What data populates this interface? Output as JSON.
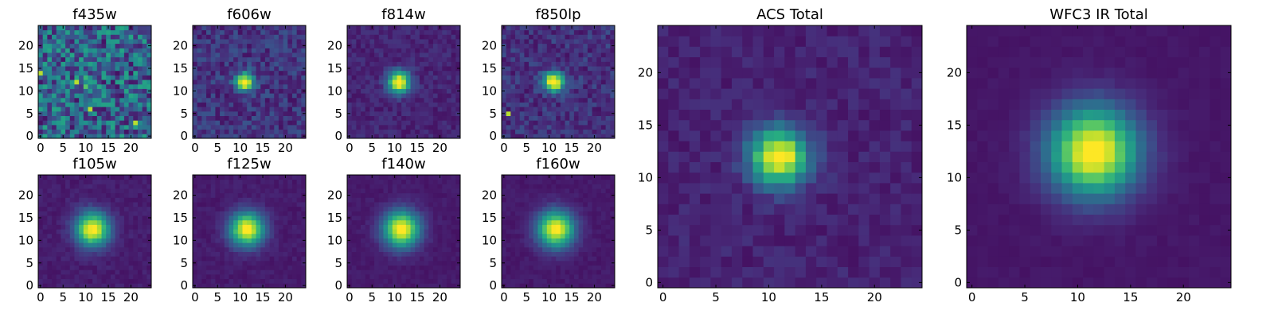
{
  "chart_data": {
    "type": "heatmap",
    "colormap": "viridis",
    "grid": false,
    "panels": [
      {
        "title": "f435w",
        "xlim": [
          0,
          24
        ],
        "ylim": [
          0,
          24
        ],
        "xticks": [
          0,
          5,
          10,
          15,
          20
        ],
        "yticks": [
          0,
          5,
          10,
          15,
          20
        ],
        "center": [
          11,
          12
        ],
        "peak": 0.45,
        "sigma": 1.0,
        "noise": 0.55,
        "peaks": [
          [
            11,
            6
          ],
          [
            8,
            12
          ],
          [
            0,
            14
          ],
          [
            21,
            3
          ]
        ]
      },
      {
        "title": "f606w",
        "xlim": [
          0,
          24
        ],
        "ylim": [
          0,
          24
        ],
        "xticks": [
          0,
          5,
          10,
          15,
          20
        ],
        "yticks": [
          0,
          5,
          10,
          15,
          20
        ],
        "center": [
          11,
          12
        ],
        "peak": 0.95,
        "sigma": 1.4,
        "noise": 0.22,
        "peaks": []
      },
      {
        "title": "f814w",
        "xlim": [
          0,
          24
        ],
        "ylim": [
          0,
          24
        ],
        "xticks": [
          0,
          5,
          10,
          15,
          20
        ],
        "yticks": [
          0,
          5,
          10,
          15,
          20
        ],
        "center": [
          11,
          12
        ],
        "peak": 0.95,
        "sigma": 1.7,
        "noise": 0.12,
        "peaks": []
      },
      {
        "title": "f850lp",
        "xlim": [
          0,
          24
        ],
        "ylim": [
          0,
          24
        ],
        "xticks": [
          0,
          5,
          10,
          15,
          20
        ],
        "yticks": [
          0,
          5,
          10,
          15,
          20
        ],
        "center": [
          11,
          12
        ],
        "peak": 0.95,
        "sigma": 1.5,
        "noise": 0.2,
        "peaks": [
          [
            1,
            5
          ]
        ]
      },
      {
        "title": "f105w",
        "xlim": [
          0,
          24
        ],
        "ylim": [
          0,
          24
        ],
        "xticks": [
          0,
          5,
          10,
          15,
          20
        ],
        "yticks": [
          0,
          5,
          10,
          15,
          20
        ],
        "center": [
          11.5,
          12.5
        ],
        "peak": 0.95,
        "sigma": 2.6,
        "noise": 0.07,
        "peaks": []
      },
      {
        "title": "f125w",
        "xlim": [
          0,
          24
        ],
        "ylim": [
          0,
          24
        ],
        "xticks": [
          0,
          5,
          10,
          15,
          20
        ],
        "yticks": [
          0,
          5,
          10,
          15,
          20
        ],
        "center": [
          11.5,
          12.5
        ],
        "peak": 0.95,
        "sigma": 2.6,
        "noise": 0.06,
        "peaks": []
      },
      {
        "title": "f140w",
        "xlim": [
          0,
          24
        ],
        "ylim": [
          0,
          24
        ],
        "xticks": [
          0,
          5,
          10,
          15,
          20
        ],
        "yticks": [
          0,
          5,
          10,
          15,
          20
        ],
        "center": [
          11.5,
          12.5
        ],
        "peak": 0.95,
        "sigma": 2.8,
        "noise": 0.05,
        "peaks": []
      },
      {
        "title": "f160w",
        "xlim": [
          0,
          24
        ],
        "ylim": [
          0,
          24
        ],
        "xticks": [
          0,
          5,
          10,
          15,
          20
        ],
        "yticks": [
          0,
          5,
          10,
          15,
          20
        ],
        "center": [
          11.5,
          12.5
        ],
        "peak": 0.95,
        "sigma": 2.8,
        "noise": 0.05,
        "peaks": []
      },
      {
        "title": "ACS Total",
        "xlim": [
          0,
          24
        ],
        "ylim": [
          0,
          24
        ],
        "xticks": [
          0,
          5,
          10,
          15,
          20
        ],
        "yticks": [
          0,
          5,
          10,
          15,
          20
        ],
        "center": [
          11,
          12
        ],
        "peak": 0.95,
        "sigma": 1.9,
        "noise": 0.1,
        "peaks": []
      },
      {
        "title": "WFC3 IR Total",
        "xlim": [
          0,
          24
        ],
        "ylim": [
          0,
          24
        ],
        "xticks": [
          0,
          5,
          10,
          15,
          20
        ],
        "yticks": [
          0,
          5,
          10,
          15,
          20
        ],
        "center": [
          11.5,
          12.5
        ],
        "peak": 1.0,
        "sigma": 2.9,
        "noise": 0.03,
        "peaks": []
      }
    ]
  }
}
